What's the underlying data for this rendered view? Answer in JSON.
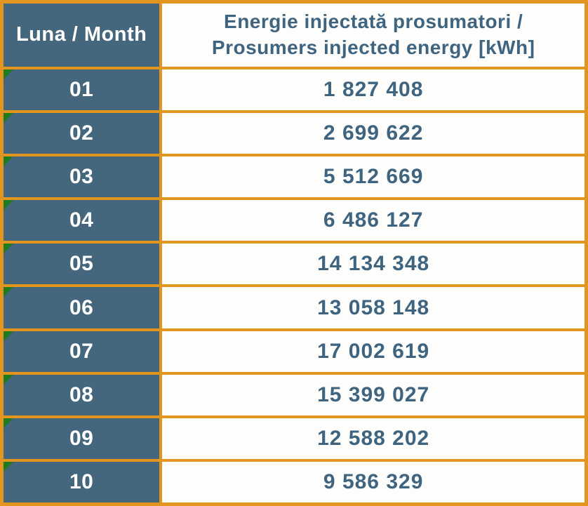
{
  "table": {
    "header": {
      "month_label": "Luna / Month",
      "energy_label_line1": "Energie injectată prosumatori /",
      "energy_label_line2": "Prosumers injected energy [kWh]"
    },
    "rows": [
      {
        "month": "01",
        "energy_display": "1 827 408"
      },
      {
        "month": "02",
        "energy_display": "2 699 622"
      },
      {
        "month": "03",
        "energy_display": "5 512 669"
      },
      {
        "month": "04",
        "energy_display": "6 486 127"
      },
      {
        "month": "05",
        "energy_display": "14 134 348"
      },
      {
        "month": "06",
        "energy_display": "13 058 148"
      },
      {
        "month": "07",
        "energy_display": "17 002 619"
      },
      {
        "month": "08",
        "energy_display": "15 399 027"
      },
      {
        "month": "09",
        "energy_display": "12 588 202"
      },
      {
        "month": "10",
        "energy_display": "9 586 329"
      }
    ]
  },
  "chart_data": {
    "type": "table",
    "title": "Energie injectată prosumatori / Prosumers injected energy [kWh]",
    "columns": [
      "Luna / Month",
      "Energie injectată prosumatori / Prosumers injected energy [kWh]"
    ],
    "categories": [
      "01",
      "02",
      "03",
      "04",
      "05",
      "06",
      "07",
      "08",
      "09",
      "10"
    ],
    "values": [
      1827408,
      2699622,
      5512669,
      6486127,
      14134348,
      13058148,
      17002619,
      15399027,
      12588202,
      9586329
    ],
    "unit": "kWh"
  },
  "icons": {
    "cell_flag": "green-corner-triangle-number-stored-as-text-indicator"
  },
  "colors": {
    "border_orange": "#E29620",
    "month_cell_background": "#44677D",
    "month_cell_text": "#FFFFFF",
    "energy_cell_background": "#FDFDFC",
    "energy_text": "#3E6480",
    "flag_green": "#1F7B1F"
  }
}
